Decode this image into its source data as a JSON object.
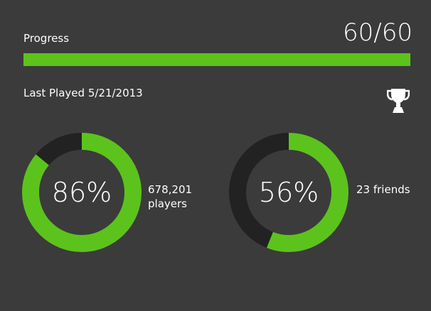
{
  "progress": {
    "label": "Progress",
    "count_text": "60/60",
    "value": 60,
    "max": 60
  },
  "last_played": "Last Played 5/21/2013",
  "stats": [
    {
      "percent": 86,
      "percent_text": "86%",
      "caption_line1": "678,201",
      "caption_line2": "players"
    },
    {
      "percent": 56,
      "percent_text": "56%",
      "caption_line1": "23 friends",
      "caption_line2": ""
    }
  ],
  "icons": {
    "trophy": "trophy-icon"
  },
  "colors": {
    "background": "#3b3b3b",
    "accent": "#5cc31d",
    "track": "#262626",
    "text": "#ffffff"
  }
}
